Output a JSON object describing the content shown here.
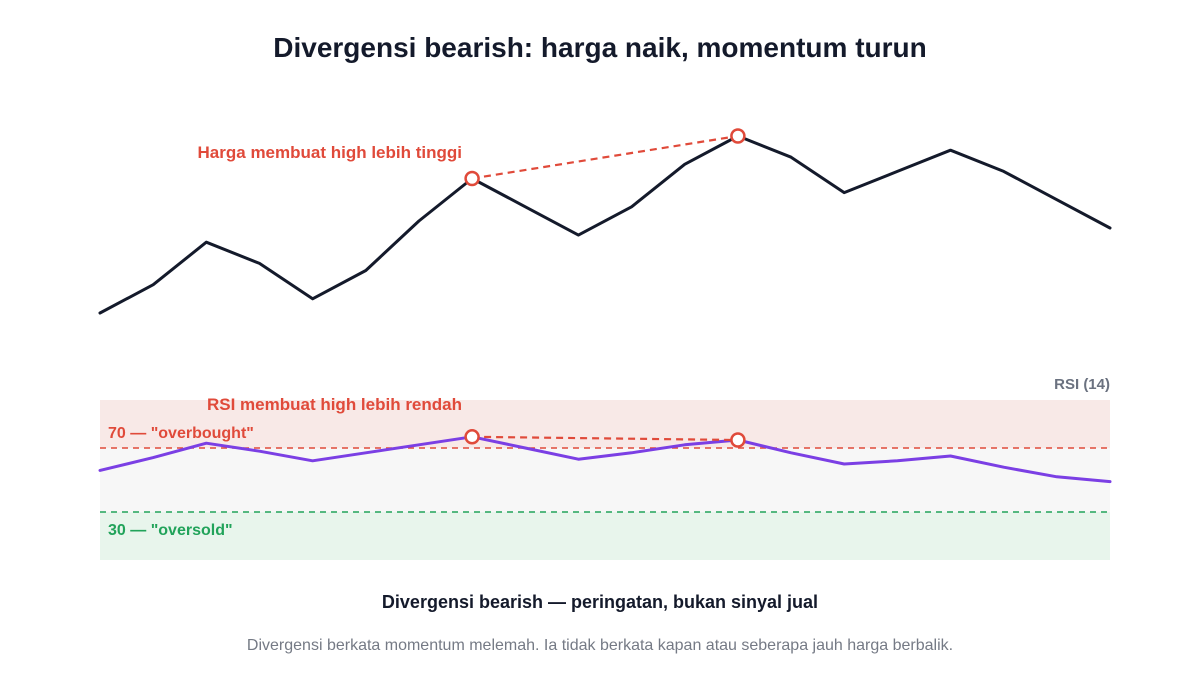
{
  "chart_data": {
    "type": "line",
    "title": "Divergensi bearish: harga naik, momentum turun",
    "x": [
      0,
      1,
      2,
      3,
      4,
      5,
      6,
      7,
      8,
      9,
      10,
      11,
      12,
      13,
      14,
      15,
      16,
      17,
      18,
      19
    ],
    "series": [
      {
        "name": "",
        "panel": "price",
        "values": [
          100,
          104,
          110,
          107,
          102,
          106,
          113,
          119,
          115,
          111,
          115,
          121,
          125,
          122,
          117,
          120,
          123,
          120,
          116,
          112
        ],
        "color": "#141a2b"
      },
      {
        "name": "RSI (14)",
        "panel": "rsi",
        "values": [
          56,
          64,
          73,
          68,
          62,
          67,
          72,
          77,
          70,
          63,
          67,
          72,
          75,
          67,
          60,
          62,
          65,
          58,
          52,
          49
        ],
        "color": "#7b3fe4"
      }
    ],
    "rsi_panel": {
      "label": "RSI (14)",
      "ylim": [
        0,
        100
      ],
      "overbought": {
        "value": 70,
        "label": "70 — \"overbought\"",
        "color": "#e04a3a"
      },
      "oversold": {
        "value": 30,
        "label": "30 — \"oversold\"",
        "color": "#21a35a"
      }
    },
    "divergence": {
      "color": "#e04a3a",
      "price_points": [
        7,
        12
      ],
      "rsi_points": [
        7,
        12
      ],
      "price_annotation": "Harga membuat high lebih tinggi",
      "rsi_annotation": "RSI membuat high lebih rendah"
    },
    "subtitle": "Divergensi bearish — peringatan, bukan sinyal jual",
    "note": "Divergensi berkata momentum melemah. Ia tidak berkata kapan atau seberapa jauh harga berbalik."
  },
  "colors": {
    "text": "#141a2b",
    "muted": "#757a85",
    "overbought_zone": "#f8e9e7",
    "neutral_zone": "#f7f7f7",
    "oversold_zone": "#e8f5ec"
  }
}
